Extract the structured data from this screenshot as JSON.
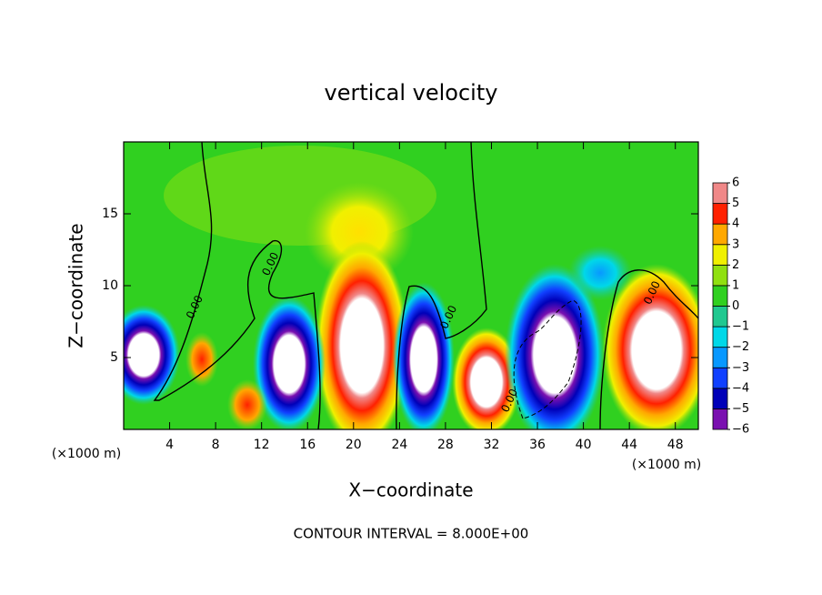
{
  "chart_data": {
    "type": "contour",
    "title": "vertical velocity",
    "x_label": "X−coordinate",
    "y_label": "Z−coordinate",
    "x_unit": "(×1000 m)",
    "y_unit": "(×1000 m)",
    "footer": "CONTOUR INTERVAL = 8.000E+00",
    "xlim": [
      0,
      50
    ],
    "ylim": [
      0,
      20
    ],
    "xticks": [
      4,
      8,
      12,
      16,
      20,
      24,
      28,
      32,
      36,
      40,
      44,
      48
    ],
    "yticks": [
      5,
      10,
      15
    ],
    "colorbar": {
      "levels": [
        -6,
        -5,
        -4,
        -3,
        -2,
        -1,
        0,
        1,
        2,
        3,
        4,
        5,
        6
      ],
      "labels": [
        "−6",
        "−5",
        "−4",
        "−3",
        "−2",
        "−1",
        "0",
        "1",
        "2",
        "3",
        "4",
        "5",
        "6"
      ],
      "colors": [
        "#7a10b0",
        "#0000b8",
        "#1040ff",
        "#0898ff",
        "#00d8e8",
        "#20c890",
        "#30d020",
        "#90e010",
        "#f0f000",
        "#ffa800",
        "#ff2000",
        "#f08888"
      ]
    },
    "contour_labels": [
      {
        "x": 6.2,
        "y": 8.5,
        "value": 0,
        "label": "0.00"
      },
      {
        "x": 12.8,
        "y": 11.5,
        "value": 0,
        "label": "0.00"
      },
      {
        "x": 28.3,
        "y": 7.8,
        "value": 0,
        "label": "0.00"
      },
      {
        "x": 33.6,
        "y": 2.0,
        "value": 0,
        "label": "0.00"
      },
      {
        "x": 46.0,
        "y": 9.5,
        "value": 0,
        "label": "0.00"
      }
    ]
  }
}
